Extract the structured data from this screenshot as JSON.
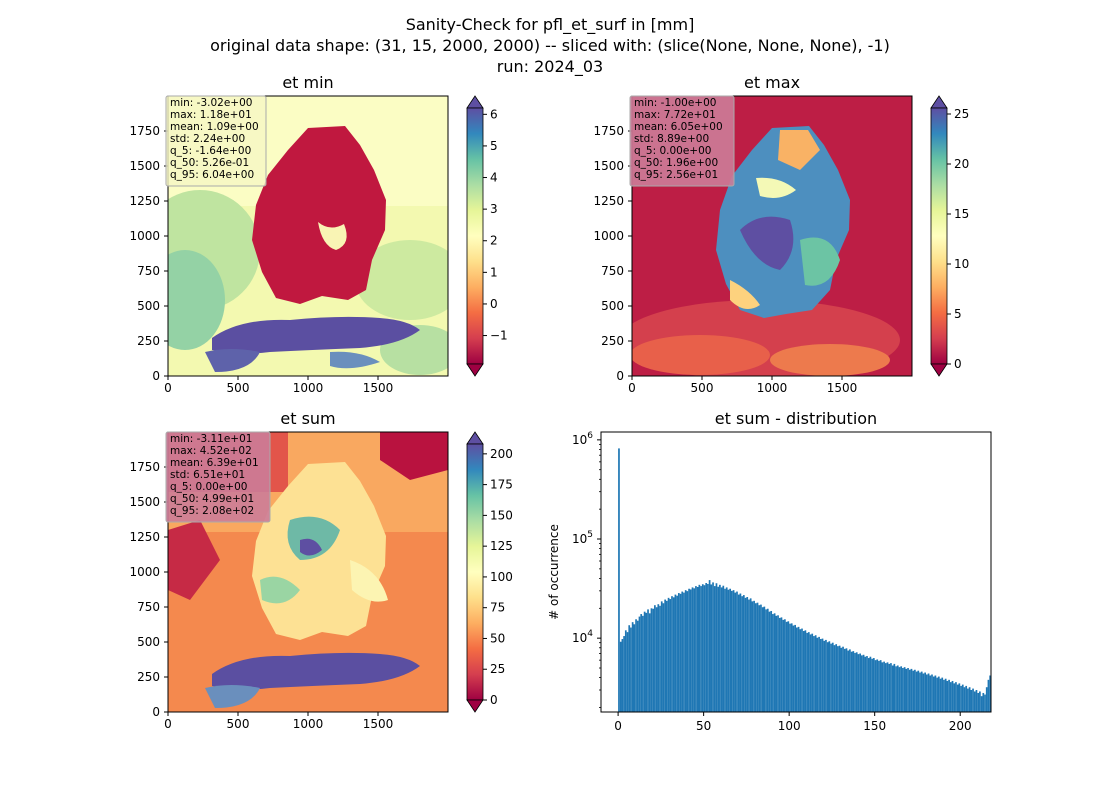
{
  "figure": {
    "title_lines": [
      "Sanity-Check for pfl_et_surf in [mm]",
      "original data shape: (31, 15, 2000, 2000) -- sliced with: (slice(None, None, None), -1)",
      "run: 2024_03"
    ]
  },
  "chart_data": [
    {
      "type": "heatmap",
      "title": "et min",
      "x_ticks": [
        0,
        500,
        1000,
        1500
      ],
      "y_ticks": [
        0,
        250,
        500,
        750,
        1000,
        1250,
        1500,
        1750
      ],
      "xlim": [
        0,
        2000
      ],
      "ylim": [
        0,
        2000
      ],
      "colormap": "Spectral",
      "colorbar": {
        "ticks": [
          -1,
          0,
          1,
          2,
          3,
          4,
          5,
          6
        ],
        "range": [
          -1.9,
          6.2
        ],
        "extend": "both"
      },
      "stats": [
        "min: -3.02e+00",
        "max: 1.18e+01",
        "mean: 1.09e+00",
        "std: 2.24e+00",
        "q_5: -1.64e+00",
        "q_50: 5.26e-01",
        "q_95: 6.04e+00"
      ],
      "stats_box_color": "#f6f6c4"
    },
    {
      "type": "heatmap",
      "title": "et max",
      "x_ticks": [
        0,
        500,
        1000,
        1500
      ],
      "y_ticks": [
        0,
        250,
        500,
        750,
        1000,
        1250,
        1500,
        1750
      ],
      "xlim": [
        0,
        2000
      ],
      "ylim": [
        0,
        2000
      ],
      "colormap": "Spectral",
      "colorbar": {
        "ticks": [
          0,
          5,
          10,
          15,
          20,
          25
        ],
        "range": [
          0,
          25.6
        ],
        "extend": "both"
      },
      "stats": [
        "min: -1.00e+00",
        "max: 7.72e+01",
        "mean: 6.05e+00",
        "std: 8.89e+00",
        "q_5: 0.00e+00",
        "q_50: 1.96e+00",
        "q_95: 2.56e+01"
      ],
      "stats_box_color": "#cc7c98"
    },
    {
      "type": "heatmap",
      "title": "et sum",
      "x_ticks": [
        0,
        500,
        1000,
        1500
      ],
      "y_ticks": [
        0,
        250,
        500,
        750,
        1000,
        1250,
        1500,
        1750
      ],
      "xlim": [
        0,
        2000
      ],
      "ylim": [
        0,
        2000
      ],
      "colormap": "Spectral",
      "colorbar": {
        "ticks": [
          0,
          25,
          50,
          75,
          100,
          125,
          150,
          175,
          200
        ],
        "range": [
          0,
          208
        ],
        "extend": "both"
      },
      "stats": [
        "min: -3.11e+01",
        "max: 4.52e+02",
        "mean: 6.39e+01",
        "std: 6.51e+01",
        "q_5: 0.00e+00",
        "q_50: 4.99e+01",
        "q_95: 2.08e+02"
      ],
      "stats_box_color": "#cc7c98"
    },
    {
      "type": "bar",
      "title": "et sum - distribution",
      "ylabel": "# of occurrence",
      "y_scale": "log",
      "x_ticks": [
        0,
        50,
        100,
        150,
        200
      ],
      "y_tick_base": "10",
      "y_tick_exponents": [
        "4",
        "5",
        "6"
      ],
      "xlim": [
        -10,
        218
      ],
      "ylim": [
        1800,
        1200000
      ],
      "bar_color": "#1f77b4",
      "bins": {
        "start": 0,
        "width": 1.0
      },
      "values": [
        820000,
        9200,
        9800,
        10500,
        12000,
        11500,
        13500,
        12800,
        14500,
        13800,
        15500,
        15000,
        16500,
        17500,
        16800,
        18500,
        18000,
        19500,
        17800,
        20000,
        19800,
        21500,
        20500,
        22000,
        21200,
        23500,
        22500,
        24500,
        23800,
        25500,
        24800,
        26500,
        25800,
        27500,
        26800,
        28500,
        28000,
        29500,
        28800,
        30500,
        29800,
        31500,
        31000,
        32500,
        31800,
        33500,
        32800,
        34500,
        33500,
        35000,
        34200,
        36000,
        35200,
        38500,
        34800,
        36500,
        33500,
        35800,
        33000,
        34500,
        32500,
        33800,
        31500,
        32500,
        30800,
        31500,
        30000,
        30500,
        28800,
        29500,
        27500,
        28200,
        26500,
        27200,
        25500,
        26000,
        24500,
        25200,
        23500,
        23800,
        22500,
        22800,
        21500,
        21800,
        20500,
        20800,
        19500,
        19800,
        18500,
        18800,
        17500,
        17800,
        16800,
        17000,
        16000,
        16200,
        15300,
        15500,
        14600,
        14800,
        14000,
        14100,
        13400,
        13600,
        12800,
        13000,
        12300,
        12500,
        11800,
        12000,
        11300,
        11500,
        10900,
        11100,
        10500,
        10700,
        10100,
        10300,
        9800,
        9900,
        9400,
        9600,
        9100,
        9300,
        8800,
        9000,
        8500,
        8700,
        8300,
        8400,
        8000,
        8200,
        7800,
        7900,
        7500,
        7700,
        7300,
        7400,
        7100,
        7200,
        6900,
        7000,
        6700,
        6800,
        6500,
        6600,
        6300,
        6500,
        6200,
        6300,
        6000,
        6100,
        5900,
        6000,
        5700,
        5800,
        5600,
        5700,
        5500,
        5600,
        5300,
        5500,
        5200,
        5300,
        5100,
        5200,
        5000,
        5100,
        4900,
        5000,
        4800,
        4900,
        4700,
        4800,
        4600,
        4700,
        4500,
        4600,
        4400,
        4500,
        4300,
        4400,
        4200,
        4300,
        4100,
        4200,
        4000,
        4100,
        3900,
        4000,
        3800,
        3900,
        3700,
        3800,
        3600,
        3700,
        3500,
        3600,
        3400,
        3500,
        3300,
        3400,
        3200,
        3300,
        3100,
        3200,
        3000,
        3100,
        2900,
        3000,
        2800,
        2900,
        2600,
        2800,
        2700,
        3200,
        3800,
        4200
      ]
    }
  ]
}
